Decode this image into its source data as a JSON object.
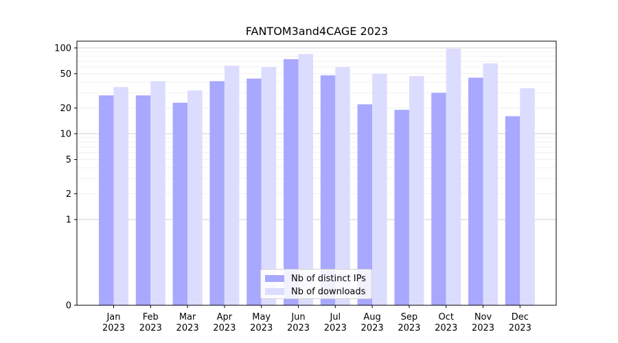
{
  "chart_data": {
    "type": "bar",
    "title": "FANTOM3and4CAGE 2023",
    "xlabel": "",
    "ylabel": "",
    "y_scale": "symlog",
    "ylim": [
      0,
      120
    ],
    "y_ticks": [
      0,
      1,
      2,
      5,
      10,
      20,
      50,
      100
    ],
    "y_tick_labels": [
      "0",
      "1",
      "2",
      "5",
      "10",
      "20",
      "50",
      "100"
    ],
    "categories": [
      "Jan\n2023",
      "Feb\n2023",
      "Mar\n2023",
      "Apr\n2023",
      "May\n2023",
      "Jun\n2023",
      "Jul\n2023",
      "Aug\n2023",
      "Sep\n2023",
      "Oct\n2023",
      "Nov\n2023",
      "Dec\n2023"
    ],
    "series": [
      {
        "name": "Nb of distinct IPs",
        "color": "#a8a8ff",
        "values": [
          28,
          28,
          23,
          41,
          44,
          74,
          48,
          22,
          19,
          30,
          45,
          16
        ]
      },
      {
        "name": "Nb of downloads",
        "color": "#dcdcff",
        "values": [
          35,
          41,
          32,
          62,
          60,
          85,
          60,
          50,
          47,
          98,
          66,
          34
        ]
      }
    ],
    "grid": "horizontal",
    "legend_position": "bottom-center"
  }
}
